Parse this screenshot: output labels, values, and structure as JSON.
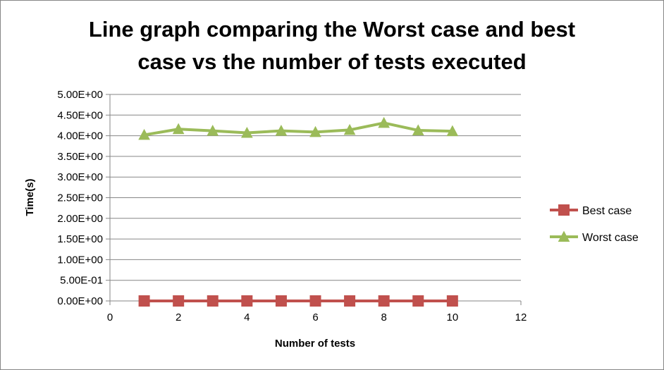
{
  "chart_data": {
    "type": "line",
    "title_lines": [
      "Line graph comparing the Worst case and best",
      "case vs the number of tests executed"
    ],
    "xlabel": "Number of tests",
    "ylabel": "Time(s)",
    "xlim": [
      0,
      12
    ],
    "ylim": [
      0,
      5
    ],
    "x_ticks": [
      0,
      2,
      4,
      6,
      8,
      10,
      12
    ],
    "x_tick_labels": [
      "0",
      "2",
      "4",
      "6",
      "8",
      "10",
      "12"
    ],
    "y_ticks": [
      0,
      0.5,
      1,
      1.5,
      2,
      2.5,
      3,
      3.5,
      4,
      4.5,
      5
    ],
    "y_tick_labels": [
      "0.00E+00",
      "5.00E-01",
      "1.00E+00",
      "1.50E+00",
      "2.00E+00",
      "2.50E+00",
      "3.00E+00",
      "3.50E+00",
      "4.00E+00",
      "4.50E+00",
      "5.00E+00"
    ],
    "grid": "horizontal",
    "legend_position": "right",
    "x": [
      1,
      2,
      3,
      4,
      5,
      6,
      7,
      8,
      9,
      10
    ],
    "series": [
      {
        "name": "Best case",
        "values": [
          0,
          0,
          0,
          0,
          0,
          0,
          0,
          0,
          0,
          0
        ],
        "color": "#C0504D",
        "marker": "square"
      },
      {
        "name": "Worst case",
        "values": [
          4.02,
          4.16,
          4.12,
          4.07,
          4.12,
          4.09,
          4.14,
          4.31,
          4.13,
          4.11
        ],
        "color": "#9BBB59",
        "marker": "triangle"
      }
    ]
  }
}
